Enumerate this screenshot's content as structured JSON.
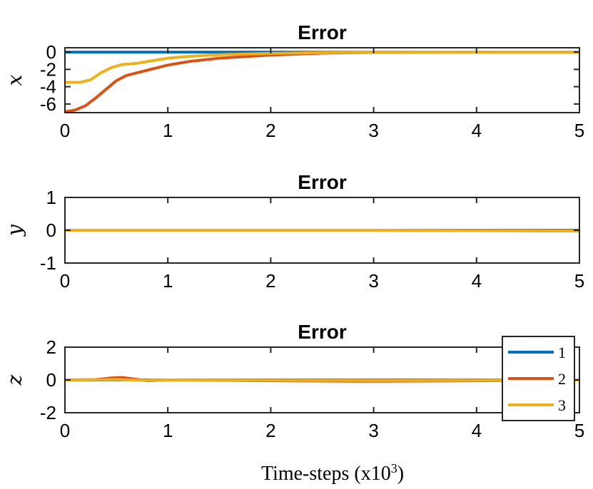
{
  "chart_data": [
    {
      "type": "line",
      "title": "Error",
      "ylabel": "x",
      "xlim": [
        0,
        5
      ],
      "ylim": [
        -7,
        0.5
      ],
      "xticks": [
        "0",
        "1",
        "2",
        "3",
        "4",
        "5"
      ],
      "yticks": [
        {
          "value": 0,
          "label": "0"
        },
        {
          "value": -2,
          "label": "-2"
        },
        {
          "value": -4,
          "label": "-4"
        },
        {
          "value": -6,
          "label": "-6"
        }
      ],
      "series": [
        {
          "color": "#0072BD",
          "points": [
            [
              0,
              0
            ],
            [
              1,
              0
            ],
            [
              2,
              0
            ],
            [
              3,
              0
            ],
            [
              4,
              0
            ],
            [
              5,
              0
            ]
          ]
        },
        {
          "color": "#D95319",
          "points": [
            [
              0,
              -6.9
            ],
            [
              0.1,
              -6.7
            ],
            [
              0.2,
              -6.2
            ],
            [
              0.3,
              -5.3
            ],
            [
              0.4,
              -4.3
            ],
            [
              0.5,
              -3.3
            ],
            [
              0.6,
              -2.7
            ],
            [
              0.7,
              -2.4
            ],
            [
              0.8,
              -2.1
            ],
            [
              1.0,
              -1.5
            ],
            [
              1.2,
              -1.1
            ],
            [
              1.5,
              -0.7
            ],
            [
              2.0,
              -0.35
            ],
            [
              2.5,
              -0.12
            ],
            [
              3.0,
              -0.03
            ],
            [
              4.0,
              0
            ],
            [
              5.0,
              0
            ]
          ]
        },
        {
          "color": "#EDB120",
          "points": [
            [
              0,
              -3.5
            ],
            [
              0.15,
              -3.5
            ],
            [
              0.25,
              -3.2
            ],
            [
              0.35,
              -2.4
            ],
            [
              0.45,
              -1.8
            ],
            [
              0.55,
              -1.45
            ],
            [
              0.7,
              -1.3
            ],
            [
              0.8,
              -1.1
            ],
            [
              1.0,
              -0.7
            ],
            [
              1.2,
              -0.5
            ],
            [
              1.5,
              -0.3
            ],
            [
              2.0,
              -0.15
            ],
            [
              2.5,
              -0.05
            ],
            [
              3.0,
              0
            ],
            [
              5.0,
              0
            ]
          ]
        }
      ]
    },
    {
      "type": "line",
      "title": "Error",
      "ylabel": "y",
      "xlim": [
        0,
        5
      ],
      "ylim": [
        -1,
        1
      ],
      "xticks": [
        "0",
        "1",
        "2",
        "3",
        "4",
        "5"
      ],
      "yticks": [
        {
          "value": 1,
          "label": "1"
        },
        {
          "value": 0,
          "label": "0"
        },
        {
          "value": -1,
          "label": "-1"
        }
      ],
      "series": [
        {
          "color": "#0072BD",
          "points": [
            [
              0,
              0
            ],
            [
              5,
              0
            ]
          ]
        },
        {
          "color": "#D95319",
          "points": [
            [
              0,
              0
            ],
            [
              3,
              0
            ],
            [
              4,
              -0.01
            ],
            [
              5,
              -0.02
            ]
          ]
        },
        {
          "color": "#EDB120",
          "points": [
            [
              0,
              0
            ],
            [
              3,
              0
            ],
            [
              4,
              -0.01
            ],
            [
              5,
              -0.02
            ]
          ]
        }
      ]
    },
    {
      "type": "line",
      "title": "Error",
      "ylabel": "z",
      "xlim": [
        0,
        5
      ],
      "ylim": [
        -2,
        2
      ],
      "xticks": [
        "0",
        "1",
        "2",
        "3",
        "4",
        "5"
      ],
      "yticks": [
        {
          "value": 2,
          "label": "2"
        },
        {
          "value": 0,
          "label": "0"
        },
        {
          "value": -2,
          "label": "-2"
        }
      ],
      "series": [
        {
          "color": "#0072BD",
          "points": [
            [
              0,
              0
            ],
            [
              5,
              0
            ]
          ]
        },
        {
          "color": "#D95319",
          "points": [
            [
              0,
              0
            ],
            [
              0.3,
              0.02
            ],
            [
              0.45,
              0.12
            ],
            [
              0.55,
              0.15
            ],
            [
              0.65,
              0.08
            ],
            [
              0.8,
              -0.05
            ],
            [
              1.0,
              0
            ],
            [
              2.0,
              -0.05
            ],
            [
              3.0,
              -0.08
            ],
            [
              4.0,
              -0.05
            ],
            [
              5.0,
              0
            ]
          ]
        },
        {
          "color": "#EDB120",
          "points": [
            [
              0,
              0
            ],
            [
              0.5,
              0.02
            ],
            [
              0.8,
              -0.02
            ],
            [
              1.0,
              0
            ],
            [
              2.0,
              -0.02
            ],
            [
              3.0,
              -0.03
            ],
            [
              4.0,
              -0.02
            ],
            [
              5.0,
              0
            ]
          ]
        }
      ],
      "legend": {
        "position": "bottom-right",
        "entries": [
          {
            "label": "1",
            "color": "#0072BD"
          },
          {
            "label": "2",
            "color": "#D95319"
          },
          {
            "label": "3",
            "color": "#EDB120"
          }
        ]
      }
    }
  ],
  "figure": {
    "xlabel_prefix": "Time-steps (x10",
    "xlabel_exponent": "3",
    "xlabel_suffix": ")"
  }
}
